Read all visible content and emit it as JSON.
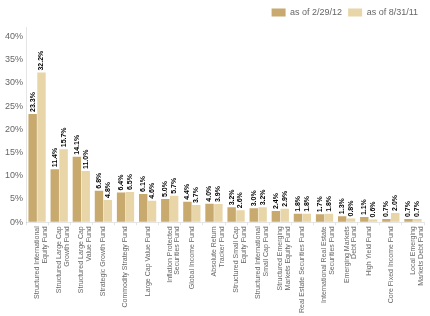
{
  "chart_data": {
    "type": "bar",
    "categories": [
      "Structured International\nEquity Fund",
      "Structured Large Cap\nGrowth Fund",
      "Structured Large Cap\nValue Fund",
      "Strategic Growth Fund",
      "Commodity Strategy Fund",
      "Large Cap Value Fund",
      "Inflation Protected\nSecurities Fund",
      "Global Income Fund",
      "Absolute Return\nTracker Fund",
      "Structured Small Cap\nEquity Fund",
      "Structured International\nSmall Cap Fund",
      "Structured Emerging\nMarkets Equity Fund",
      "Real Estate Securities Fund",
      "International Real Estate\nSecurities Fund",
      "Emerging Markets\nDebt Fund",
      "High Yield Fund",
      "Core Fixed Income Fund",
      "Local Emerging\nMarkets Debt Fund"
    ],
    "series": [
      {
        "name": "as of 2/29/12",
        "color": "#C8A96E",
        "values": [
          23.3,
          11.4,
          14.1,
          6.8,
          6.4,
          6.1,
          5.0,
          4.4,
          4.0,
          3.2,
          3.0,
          2.4,
          1.8,
          1.7,
          1.3,
          1.1,
          0.7,
          0.7
        ],
        "value_labels": [
          "23.3%",
          "11.4%",
          "14.1%",
          "6.8%",
          "6.4%",
          "6.1%",
          "5.0%",
          "4.4%",
          "4.0%",
          "3.2%",
          "3.0%",
          "2.4%",
          "1.8%",
          "1.7%",
          "1.3%",
          "1.1%",
          "0.7%",
          "0.7%"
        ]
      },
      {
        "name": "as of 8/31/11",
        "color": "#E8D5A8",
        "values": [
          32.2,
          15.7,
          11.0,
          4.8,
          6.5,
          4.6,
          5.7,
          3.7,
          3.9,
          2.6,
          3.2,
          2.9,
          1.8,
          1.8,
          0.8,
          0.6,
          2.0,
          0.7
        ],
        "value_labels": [
          "32.2%",
          "15.7%",
          "11.0%",
          "4.8%",
          "6.5%",
          "4.6%",
          "5.7%",
          "3.7%",
          "3.9%",
          "2.6%",
          "3.2%",
          "2.9%",
          "1.8%",
          "1.8%",
          "0.8%",
          "0.6%",
          "2.0%",
          "0.7%"
        ]
      }
    ],
    "ylim": [
      0,
      42
    ],
    "yticks": [
      {
        "value": 0,
        "label": "0%"
      },
      {
        "value": 5,
        "label": "5%"
      },
      {
        "value": 10,
        "label": "10%"
      },
      {
        "value": 15,
        "label": "15%"
      },
      {
        "value": 20,
        "label": "20%"
      },
      {
        "value": 25,
        "label": "25%"
      },
      {
        "value": 30,
        "label": "30%"
      },
      {
        "value": 35,
        "label": "35%"
      },
      {
        "value": 40,
        "label": "40%"
      }
    ],
    "data_labels": true,
    "grid": false,
    "legend": "upper right"
  }
}
